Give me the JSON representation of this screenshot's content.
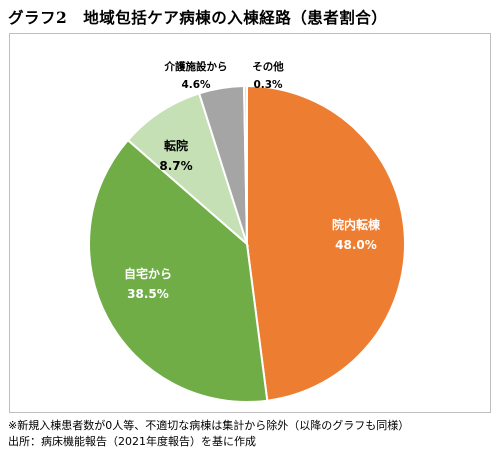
{
  "title": "グラフ2　地域包括ケア病棟の入棟経路（患者割合）",
  "chart_data": {
    "type": "pie",
    "categories": [
      "院内転棟",
      "自宅から",
      "転院",
      "介護施設から",
      "その他"
    ],
    "values": [
      48.0,
      38.5,
      8.7,
      4.6,
      0.3
    ],
    "value_labels": [
      "48.0%",
      "38.5%",
      "8.7%",
      "4.6%",
      "0.3%"
    ],
    "colors": [
      "#ed7d31",
      "#70ad47",
      "#c5e0b4",
      "#a5a5a5",
      "#d9d9d9"
    ],
    "label_colors": [
      "#ffffff",
      "#ffffff",
      "#000000",
      "#000000",
      "#000000"
    ],
    "start_angle": "12 o'clock",
    "direction": "clockwise"
  },
  "notes": {
    "line1": "※新規入棟患者数が0人等、不適切な病棟は集計から除外（以降のグラフも同様）",
    "line2": "出所：病床機能報告（2021年度報告）を基に作成"
  }
}
